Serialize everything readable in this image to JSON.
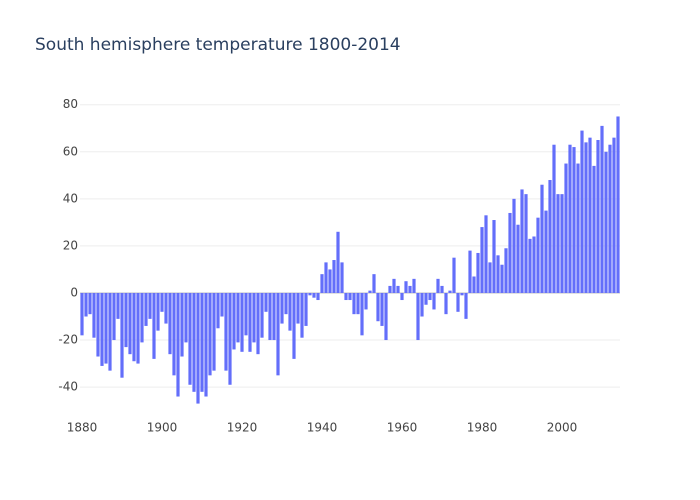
{
  "chart_data": {
    "type": "bar",
    "title": "South hemisphere temperature 1800-2014",
    "x": [
      1880,
      1881,
      1882,
      1883,
      1884,
      1885,
      1886,
      1887,
      1888,
      1889,
      1890,
      1891,
      1892,
      1893,
      1894,
      1895,
      1896,
      1897,
      1898,
      1899,
      1900,
      1901,
      1902,
      1903,
      1904,
      1905,
      1906,
      1907,
      1908,
      1909,
      1910,
      1911,
      1912,
      1913,
      1914,
      1915,
      1916,
      1917,
      1918,
      1919,
      1920,
      1921,
      1922,
      1923,
      1924,
      1925,
      1926,
      1927,
      1928,
      1929,
      1930,
      1931,
      1932,
      1933,
      1934,
      1935,
      1936,
      1937,
      1938,
      1939,
      1940,
      1941,
      1942,
      1943,
      1944,
      1945,
      1946,
      1947,
      1948,
      1949,
      1950,
      1951,
      1952,
      1953,
      1954,
      1955,
      1956,
      1957,
      1958,
      1959,
      1960,
      1961,
      1962,
      1963,
      1964,
      1965,
      1966,
      1967,
      1968,
      1969,
      1970,
      1971,
      1972,
      1973,
      1974,
      1975,
      1976,
      1977,
      1978,
      1979,
      1980,
      1981,
      1982,
      1983,
      1984,
      1985,
      1986,
      1987,
      1988,
      1989,
      1990,
      1991,
      1992,
      1993,
      1994,
      1995,
      1996,
      1997,
      1998,
      1999,
      2000,
      2001,
      2002,
      2003,
      2004,
      2005,
      2006,
      2007,
      2008,
      2009,
      2010,
      2011,
      2012,
      2013,
      2014
    ],
    "values": [
      -18,
      -10,
      -9,
      -19,
      -27,
      -31,
      -30,
      -33,
      -20,
      -11,
      -36,
      -23,
      -26,
      -29,
      -30,
      -21,
      -14,
      -11,
      -28,
      -16,
      -8,
      -13,
      -26,
      -35,
      -44,
      -27,
      -21,
      -39,
      -42,
      -47,
      -42,
      -44,
      -35,
      -33,
      -15,
      -10,
      -33,
      -39,
      -24,
      -21,
      -25,
      -18,
      -25,
      -21,
      -26,
      -19,
      -8,
      -20,
      -20,
      -35,
      -13,
      -9,
      -16,
      -28,
      -13,
      -19,
      -14,
      -1,
      -2,
      -3,
      8,
      13,
      10,
      14,
      26,
      13,
      -3,
      -3,
      -9,
      -9,
      -18,
      -7,
      1,
      8,
      -12,
      -14,
      -20,
      3,
      6,
      3,
      -3,
      5,
      3,
      6,
      -20,
      -10,
      -5,
      -3,
      -7,
      6,
      3,
      -9,
      1,
      15,
      -8,
      -1,
      -11,
      18,
      7,
      17,
      28,
      33,
      13,
      31,
      16,
      12,
      19,
      34,
      40,
      29,
      44,
      42,
      23,
      24,
      32,
      46,
      35,
      48,
      63,
      42,
      42,
      55,
      63,
      62,
      55,
      69,
      64,
      66,
      54,
      65,
      71,
      60,
      63,
      66,
      75
    ],
    "color": "#636efa",
    "xlim": [
      1879.5,
      2014.5
    ],
    "xticks": [
      1880,
      1900,
      1920,
      1940,
      1960,
      1980,
      2000
    ],
    "ylim": [
      -51,
      82
    ],
    "yticks": [
      -40,
      -20,
      0,
      20,
      40,
      60,
      80
    ],
    "grid": true
  }
}
